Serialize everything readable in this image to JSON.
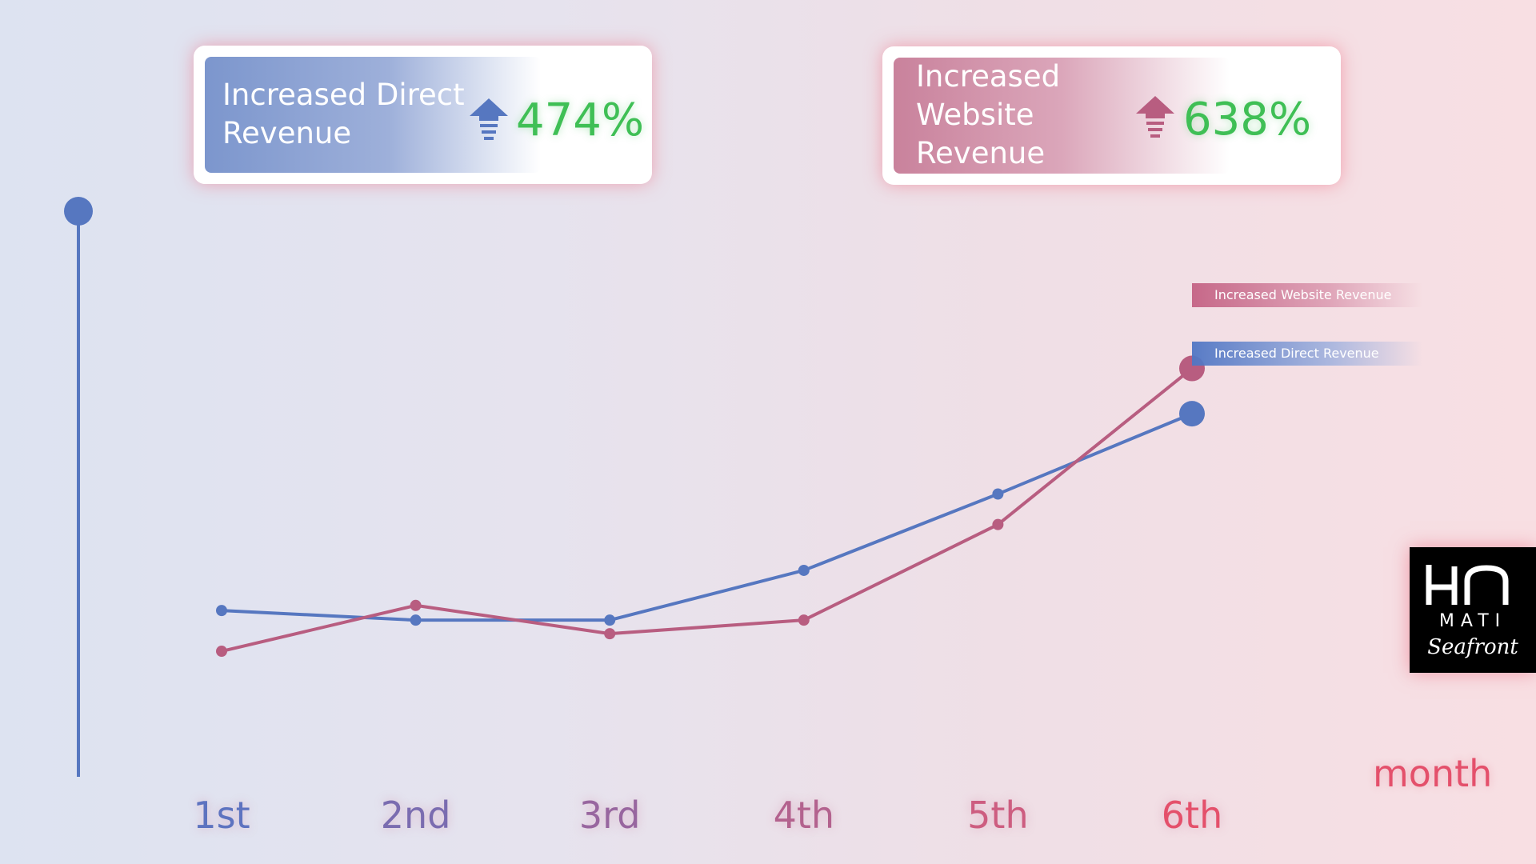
{
  "cards": {
    "direct": {
      "label": "Increased Direct Revenue",
      "value": "474%"
    },
    "website": {
      "label": "Increased Website Revenue",
      "value": "638%"
    }
  },
  "axis": {
    "x_label": "month"
  },
  "logo": {
    "line1": "MATI",
    "line2": "Seafront"
  },
  "colors": {
    "direct": "#5677c0",
    "website": "#b85d80",
    "increase_text": "#3fbf55",
    "month_text": "#e4506b"
  },
  "chart_data": {
    "type": "line",
    "categories": [
      "1st",
      "2nd",
      "3rd",
      "4th",
      "5th",
      "6th"
    ],
    "xlabel": "month",
    "ylabel": "",
    "ylim": [
      0,
      100
    ],
    "grid": false,
    "series": [
      {
        "name": "Increased Direct Revenue",
        "color": "#5677c0",
        "values": [
          29.4,
          27.7,
          27.7,
          36.5,
          50.0,
          64.2
        ]
      },
      {
        "name": "Increased Website Revenue",
        "color": "#b85d80",
        "values": [
          22.2,
          30.3,
          25.3,
          27.7,
          44.6,
          72.2
        ]
      }
    ]
  }
}
